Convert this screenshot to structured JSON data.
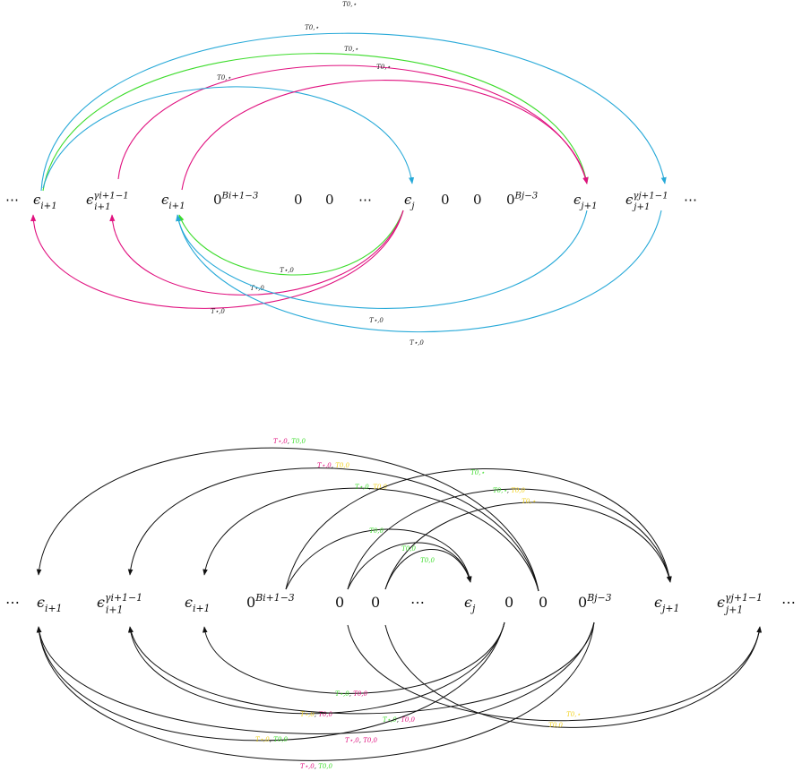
{
  "colors": {
    "blue": "#27a9d8",
    "green": "#3ddc2c",
    "magenta": "#e0117f",
    "yellow": "#f2d21e",
    "black": "#111111"
  },
  "top": {
    "nodes": [
      {
        "id": "dots_left",
        "main": "⋯",
        "sub": "",
        "sup": ""
      },
      {
        "id": "eps_i1_a",
        "main": "ϵ",
        "sub": "i+1",
        "sup": ""
      },
      {
        "id": "eps_i1_gamma",
        "main": "ϵ",
        "sub": "i+1",
        "sup": "γi+1−1"
      },
      {
        "id": "eps_i1_b",
        "main": "ϵ",
        "sub": "i+1",
        "sup": ""
      },
      {
        "id": "zeros_Bi",
        "main": "0",
        "sub": "",
        "sup": "Bi+1−3"
      },
      {
        "id": "zero_1",
        "main": "0",
        "sub": "",
        "sup": ""
      },
      {
        "id": "zero_2",
        "main": "0",
        "sub": "",
        "sup": ""
      },
      {
        "id": "dots_mid",
        "main": "⋯",
        "sub": "",
        "sup": ""
      },
      {
        "id": "eps_j",
        "main": "ϵ",
        "sub": "j",
        "sup": ""
      },
      {
        "id": "zero_3",
        "main": "0",
        "sub": "",
        "sup": ""
      },
      {
        "id": "zero_4",
        "main": "0",
        "sub": "",
        "sup": ""
      },
      {
        "id": "zeros_Bj",
        "main": "0",
        "sub": "",
        "sup": "Bj−3"
      },
      {
        "id": "eps_j1",
        "main": "ϵ",
        "sub": "j+1",
        "sup": ""
      },
      {
        "id": "eps_j1_gamma",
        "main": "ϵ",
        "sub": "j+1",
        "sup": "γj+1−1"
      },
      {
        "id": "dots_right",
        "main": "⋯",
        "sub": "",
        "sup": ""
      }
    ],
    "arcs": [
      {
        "color": "blue",
        "label": "T0,⋆"
      },
      {
        "color": "green",
        "label": "T0,⋆"
      },
      {
        "color": "magenta",
        "label": "T0,⋆"
      },
      {
        "color": "blue",
        "label": "T0,⋆"
      },
      {
        "color": "magenta",
        "label": "T0,⋆"
      },
      {
        "color": "green",
        "label": "T⋆,0"
      },
      {
        "color": "magenta",
        "label": "T⋆,0"
      },
      {
        "color": "magenta",
        "label": "T⋆,0"
      },
      {
        "color": "blue",
        "label": "T⋆,0"
      },
      {
        "color": "blue",
        "label": "T⋆,0"
      }
    ]
  },
  "bottom": {
    "nodes": [
      {
        "id": "dots_left",
        "main": "⋯",
        "sub": "",
        "sup": ""
      },
      {
        "id": "eps_i1_a",
        "main": "ϵ",
        "sub": "i+1",
        "sup": ""
      },
      {
        "id": "eps_i1_gamma",
        "main": "ϵ",
        "sub": "i+1",
        "sup": "γi+1−1"
      },
      {
        "id": "eps_i1_b",
        "main": "ϵ",
        "sub": "i+1",
        "sup": ""
      },
      {
        "id": "zeros_Bi",
        "main": "0",
        "sub": "",
        "sup": "Bi+1−3"
      },
      {
        "id": "zero_1",
        "main": "0",
        "sub": "",
        "sup": ""
      },
      {
        "id": "zero_2",
        "main": "0",
        "sub": "",
        "sup": ""
      },
      {
        "id": "dots_mid",
        "main": "⋯",
        "sub": "",
        "sup": ""
      },
      {
        "id": "eps_j",
        "main": "ϵ",
        "sub": "j",
        "sup": ""
      },
      {
        "id": "zero_3",
        "main": "0",
        "sub": "",
        "sup": ""
      },
      {
        "id": "zero_4",
        "main": "0",
        "sub": "",
        "sup": ""
      },
      {
        "id": "zeros_Bj",
        "main": "0",
        "sub": "",
        "sup": "Bj−3"
      },
      {
        "id": "eps_j1",
        "main": "ϵ",
        "sub": "j+1",
        "sup": ""
      },
      {
        "id": "eps_j1_gamma",
        "main": "ϵ",
        "sub": "j+1",
        "sup": "γj+1−1"
      },
      {
        "id": "dots_right",
        "main": "⋯",
        "sub": "",
        "sup": ""
      }
    ],
    "arcs": [
      {
        "parts": [
          {
            "t": "T⋆,0",
            "c": "magenta"
          },
          {
            "t": ", ",
            "c": "black"
          },
          {
            "t": "T0,0",
            "c": "green"
          }
        ]
      },
      {
        "parts": [
          {
            "t": "T⋆,0",
            "c": "magenta"
          },
          {
            "t": ", ",
            "c": "black"
          },
          {
            "t": "T0,0",
            "c": "yellow"
          }
        ]
      },
      {
        "parts": [
          {
            "t": "T⋆,0",
            "c": "green"
          },
          {
            "t": ", ",
            "c": "black"
          },
          {
            "t": "T0,0",
            "c": "yellow"
          }
        ]
      },
      {
        "parts": [
          {
            "t": "T0,⋆",
            "c": "green"
          }
        ]
      },
      {
        "parts": [
          {
            "t": "T0,⋆",
            "c": "green"
          },
          {
            "t": ", ",
            "c": "black"
          },
          {
            "t": "T0,0",
            "c": "yellow"
          }
        ]
      },
      {
        "parts": [
          {
            "t": "T0,⋆",
            "c": "yellow"
          }
        ]
      },
      {
        "parts": [
          {
            "t": "T0,0",
            "c": "green"
          }
        ]
      },
      {
        "parts": [
          {
            "t": "T0,0",
            "c": "green"
          }
        ]
      },
      {
        "parts": [
          {
            "t": "T0,0",
            "c": "green"
          }
        ]
      },
      {
        "parts": [
          {
            "t": "T⋆,0",
            "c": "green"
          },
          {
            "t": ", ",
            "c": "black"
          },
          {
            "t": "T0,0",
            "c": "magenta"
          }
        ]
      },
      {
        "parts": [
          {
            "t": "T⋆,0",
            "c": "yellow"
          },
          {
            "t": ", ",
            "c": "black"
          },
          {
            "t": "T0,0",
            "c": "magenta"
          }
        ]
      },
      {
        "parts": [
          {
            "t": "T⋆,0",
            "c": "green"
          },
          {
            "t": ", ",
            "c": "black"
          },
          {
            "t": "T0,0",
            "c": "magenta"
          }
        ]
      },
      {
        "parts": [
          {
            "t": "T⋆,0",
            "c": "yellow"
          },
          {
            "t": ", ",
            "c": "black"
          },
          {
            "t": "T0,0",
            "c": "green"
          }
        ]
      },
      {
        "parts": [
          {
            "t": "T⋆,0",
            "c": "magenta"
          },
          {
            "t": ", ",
            "c": "black"
          },
          {
            "t": "T0,0",
            "c": "magenta"
          }
        ]
      },
      {
        "parts": [
          {
            "t": "T⋆,0",
            "c": "magenta"
          },
          {
            "t": ", ",
            "c": "black"
          },
          {
            "t": "T0,0",
            "c": "green"
          }
        ]
      },
      {
        "parts": [
          {
            "t": "T0,⋆",
            "c": "yellow"
          }
        ]
      },
      {
        "parts": [
          {
            "t": "T0,0",
            "c": "yellow"
          }
        ]
      }
    ]
  }
}
